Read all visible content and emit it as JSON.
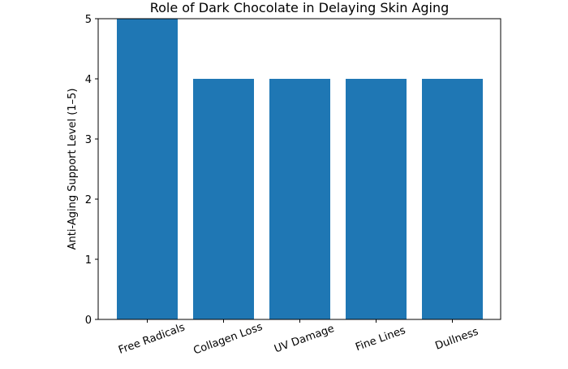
{
  "chart_data": {
    "type": "bar",
    "title": "Role of Dark Chocolate in Delaying Skin Aging",
    "y_label": "Anti-Aging Support Level (1–5)",
    "categories": [
      "Free Radicals",
      "Collagen Loss",
      "UV Damage",
      "Fine Lines",
      "Dullness"
    ],
    "values": [
      5,
      4,
      4,
      4,
      4
    ],
    "color": "#1f77b4",
    "ylim": [
      0,
      5
    ],
    "yticks": [
      0,
      1,
      2,
      3,
      4,
      5
    ],
    "grid": false
  }
}
